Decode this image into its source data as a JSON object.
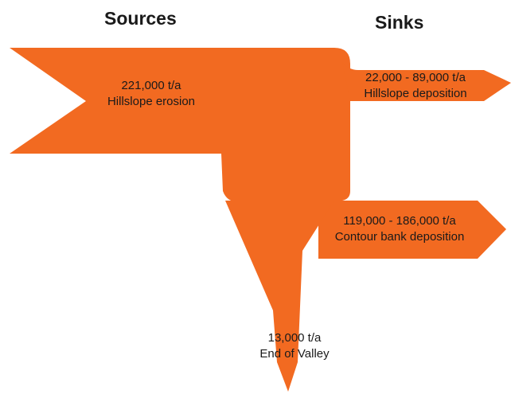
{
  "headings": {
    "sources": "Sources",
    "sinks": "Sinks"
  },
  "colors": {
    "flow": "#f26a21",
    "text": "#1a1a1a"
  },
  "flows": {
    "hillslope_erosion": {
      "value": "221,000 t/a",
      "name": "Hillslope erosion"
    },
    "hillslope_deposition": {
      "value": "22,000 - 89,000 t/a",
      "name": "Hillslope deposition"
    },
    "contour_bank_deposition": {
      "value": "119,000 - 186,000 t/a",
      "name": "Contour bank deposition"
    },
    "end_of_valley": {
      "value": "13,000 t/a",
      "name": "End of Valley"
    }
  }
}
